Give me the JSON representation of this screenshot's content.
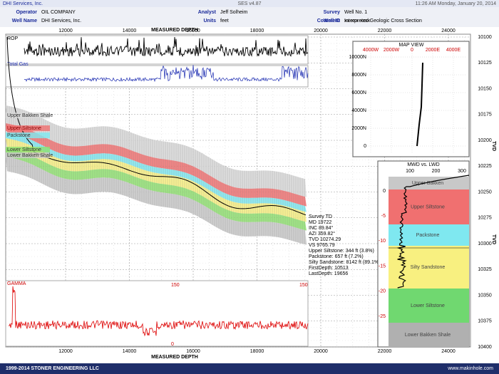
{
  "header": {
    "company": "DHI Services, Inc.",
    "version": "SES v4.87",
    "datetime": "11:26 AM Monday, January 20, 2014"
  },
  "fields": [
    {
      "label": "Operator",
      "value": "OIL COMPANY"
    },
    {
      "label": "Analyst",
      "value": "Jeff Solheim"
    },
    {
      "label": "Survey",
      "value": "Well No. 1"
    },
    {
      "label": "Well Name",
      "value": "DHI Services, Inc."
    },
    {
      "label": "Units",
      "value": "feet"
    },
    {
      "label": "Well ID",
      "value": "xx-xxx-xxxx"
    },
    {
      "label": "Comment",
      "value": "Interpreted Geologic Cross Section"
    }
  ],
  "depth_axis": {
    "title": "MEASURED DEPTH",
    "ticks": [
      "12000",
      "14000",
      "16000",
      "18000",
      "20000",
      "22000",
      "24000"
    ]
  },
  "tvd_axis": {
    "title": "TVD",
    "ticks": [
      "10100",
      "10125",
      "10150",
      "10175",
      "10200",
      "10225",
      "10250",
      "10275",
      "10300",
      "10325",
      "10350",
      "10375",
      "10400"
    ]
  },
  "tracks": {
    "rop": "ROP",
    "gas": "Total Gas",
    "gamma": "GAMMA",
    "gamma_max": "150",
    "gamma_min": "0"
  },
  "formations": [
    {
      "name": "Upper Bakken Shale",
      "color": "#d8d8d8"
    },
    {
      "name": "Upper Siltstone",
      "color": "#f07070"
    },
    {
      "name": "Packstone",
      "color": "#7fe8f0"
    },
    {
      "name": "Lower Siltstone",
      "color": "#8fe070"
    },
    {
      "name": "Lower Bakken Shale",
      "color": "#c8c8c8"
    }
  ],
  "survey": [
    "Survey TD",
    "MD 19722",
    "INC 89.84°",
    "AZI 359.82°",
    "TVD 10274.29",
    "VS 9765.79"
  ],
  "stats": [
    "Upper Siltstone: 344 ft (3.8%)",
    "Packstone: 657 ft (7.2%)",
    "Silty Sandstone: 8142 ft (89.1%)",
    "FirstDepth: 10513",
    "LastDepth: 19656"
  ],
  "map_view": {
    "title": "MAP VIEW",
    "x_ticks": [
      "4000W",
      "2000W",
      "0",
      "2000E",
      "4000E"
    ],
    "y_ticks": [
      "10000N",
      "8000N",
      "6000N",
      "4000N",
      "2000N",
      "0"
    ]
  },
  "mwd": {
    "title": "MWD vs. LWD",
    "x_ticks": [
      "100",
      "200",
      "300"
    ],
    "y_ticks": [
      "0",
      "-5",
      "-10",
      "-15",
      "-20",
      "-25"
    ],
    "zones": [
      {
        "name": "Upper Bakken",
        "color": "#c8c8c8"
      },
      {
        "name": "Upper Siltstone",
        "color": "#f07070"
      },
      {
        "name": "Packstone",
        "color": "#7fe8f0"
      },
      {
        "name": "Silty Sandstone",
        "color": "#f8f080"
      },
      {
        "name": "Lower Siltstone",
        "color": "#70d870"
      },
      {
        "name": "Lower Bakken Shale",
        "color": "#b0b0b0"
      }
    ]
  },
  "footer": {
    "left": "1999-2014 STONER ENGINEERING LLC",
    "right": "www.makinhole.com"
  }
}
